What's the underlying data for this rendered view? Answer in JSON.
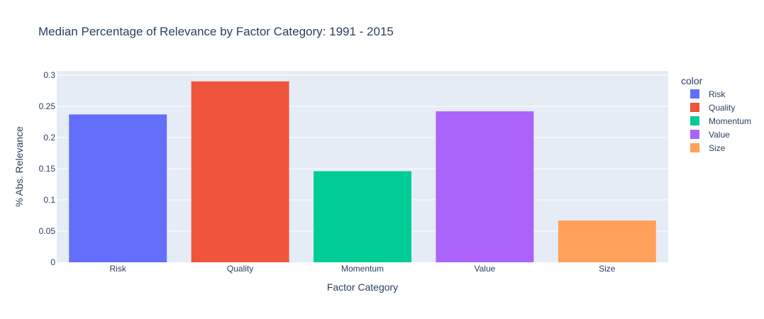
{
  "chart_data": {
    "type": "bar",
    "title": "Median Percentage of Relevance by Factor Category: 1991 - 2015",
    "xlabel": "Factor Category",
    "ylabel": "% Abs. Relevance",
    "categories": [
      "Risk",
      "Quality",
      "Momentum",
      "Value",
      "Size"
    ],
    "values": [
      0.237,
      0.29,
      0.146,
      0.242,
      0.067
    ],
    "colors": [
      "#636efa",
      "#EF553B",
      "#00cc96",
      "#ab63fa",
      "#FFA15A"
    ],
    "ylim": [
      0,
      0.3
    ],
    "yticks": [
      0,
      0.05,
      0.1,
      0.15,
      0.2,
      0.25,
      0.3
    ],
    "ytick_labels": [
      "0",
      "0.05",
      "0.1",
      "0.15",
      "0.2",
      "0.25",
      "0.3"
    ],
    "grid": true,
    "legend": {
      "title": "color",
      "placement": "right",
      "entries": [
        "Risk",
        "Quality",
        "Momentum",
        "Value",
        "Size"
      ]
    },
    "plot_bgcolor": "#e5ecf6"
  }
}
